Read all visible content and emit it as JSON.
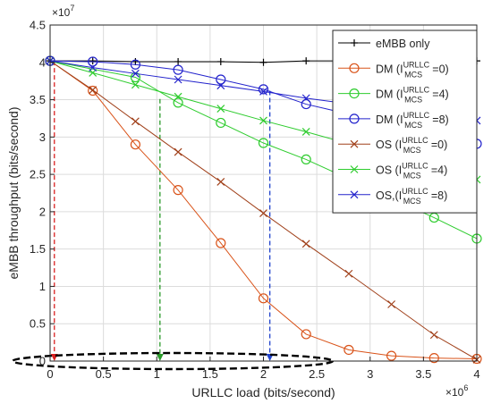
{
  "chart_data": {
    "type": "line",
    "xlabel": "URLLC load (bits/second)",
    "ylabel": "eMBB throughput (bits/second)",
    "x_multiplier": "×10^6",
    "y_multiplier": "×10^7",
    "xlim": [
      0,
      4
    ],
    "ylim": [
      0,
      4.5
    ],
    "xticks": [
      "0",
      "0.5",
      "1",
      "1.5",
      "2",
      "2.5",
      "3",
      "3.5",
      "4"
    ],
    "yticks": [
      "0",
      "0.5",
      "1",
      "1.5",
      "2",
      "2.5",
      "3",
      "3.5",
      "4",
      "4.5"
    ],
    "xtick_values": [
      0,
      0.5,
      1,
      1.5,
      2,
      2.5,
      3,
      3.5,
      4
    ],
    "ytick_values": [
      0,
      0.5,
      1,
      1.5,
      2,
      2.5,
      3,
      3.5,
      4,
      4.5
    ],
    "grid": true,
    "legend_position": "top-right",
    "series": [
      {
        "name": "eMBB only",
        "color": "#000000",
        "marker": "plus",
        "x": [
          0,
          0.4,
          0.8,
          1.2,
          1.6,
          2.0,
          2.4,
          2.8,
          3.2,
          3.6,
          4.0
        ],
        "y": [
          4.02,
          4.02,
          4.01,
          4.01,
          4.01,
          4.0,
          4.02,
          4.02,
          4.02,
          4.01,
          4.02
        ]
      },
      {
        "name": "DM (I_MCS^URLLC=0)",
        "label": {
          "prefix": "DM (I",
          "sup": "URLLC",
          "sub": "MCS",
          "suffix": "=0)"
        },
        "color": "#d95319",
        "marker": "circle",
        "x": [
          0,
          0.4,
          0.8,
          1.2,
          1.6,
          2.0,
          2.4,
          2.8,
          3.2,
          3.6,
          4.0
        ],
        "y": [
          4.02,
          3.62,
          2.9,
          2.29,
          1.58,
          0.84,
          0.36,
          0.15,
          0.07,
          0.04,
          0.03
        ]
      },
      {
        "name": "DM (I_MCS^URLLC=4)",
        "label": {
          "prefix": "DM (I",
          "sup": "URLLC",
          "sub": "MCS",
          "suffix": "=4)"
        },
        "color": "#2ecc2e",
        "marker": "circle",
        "x": [
          0,
          0.8,
          1.2,
          1.6,
          2.0,
          2.4,
          3.6,
          4.0
        ],
        "y": [
          4.02,
          3.8,
          3.46,
          3.19,
          2.92,
          2.7,
          1.92,
          1.64
        ]
      },
      {
        "name": "DM (I_MCS^URLLC=8)",
        "label": {
          "prefix": "DM (I",
          "sup": "URLLC",
          "sub": "MCS",
          "suffix": "=8)"
        },
        "color": "#2222cc",
        "marker": "circle",
        "x": [
          0,
          0.4,
          0.8,
          1.2,
          1.6,
          2.0,
          2.4,
          4.0
        ],
        "y": [
          4.02,
          4.01,
          3.97,
          3.9,
          3.77,
          3.64,
          3.44,
          2.91
        ]
      },
      {
        "name": "OS (I_MCS^URLLC=0)",
        "label": {
          "prefix": "OS (I",
          "sup": "URLLC",
          "sub": "MCS",
          "suffix": "=0)"
        },
        "color": "#a0401a",
        "marker": "x",
        "x": [
          0,
          0.4,
          0.8,
          1.2,
          1.6,
          2.0,
          2.4,
          2.8,
          3.2,
          3.6,
          4.0
        ],
        "y": [
          4.02,
          3.63,
          3.21,
          2.8,
          2.4,
          1.98,
          1.57,
          1.17,
          0.76,
          0.35,
          0.02
        ]
      },
      {
        "name": "OS (I_MCS^URLLC=4)",
        "label": {
          "prefix": "OS (I",
          "sup": "URLLC",
          "sub": "MCS",
          "suffix": "=4)"
        },
        "color": "#2ecc2e",
        "marker": "x",
        "x": [
          0,
          0.4,
          0.8,
          1.2,
          1.6,
          2.0,
          2.4,
          4.0
        ],
        "y": [
          4.02,
          3.86,
          3.7,
          3.54,
          3.38,
          3.22,
          3.07,
          2.43
        ]
      },
      {
        "name": "OS,(I_MCS^URLLC=8)",
        "label": {
          "prefix": "OS,(I",
          "sup": "URLLC",
          "sub": "MCS",
          "suffix": "=8)"
        },
        "color": "#2222cc",
        "marker": "x",
        "x": [
          0,
          0.4,
          0.8,
          1.2,
          1.6,
          2.0,
          2.4,
          4.0
        ],
        "y": [
          4.02,
          3.93,
          3.85,
          3.77,
          3.69,
          3.61,
          3.52,
          3.22
        ]
      }
    ],
    "annotations": [
      {
        "type": "dashed-arrow-down",
        "color": "#d92020",
        "x": 0.04,
        "y_from": 4.02,
        "y_to": 0
      },
      {
        "type": "dashed-arrow-down",
        "color": "#2a9a2a",
        "x": 1.03,
        "y_from": 3.51,
        "y_to": 0
      },
      {
        "type": "dashed-arrow-down",
        "color": "#2244cc",
        "x": 2.06,
        "y_from": 3.62,
        "y_to": 0
      },
      {
        "type": "dashed-ellipse",
        "color": "#000000",
        "x_center": 1.15,
        "x_half_width": 1.5,
        "y_center": 0.0
      }
    ]
  }
}
